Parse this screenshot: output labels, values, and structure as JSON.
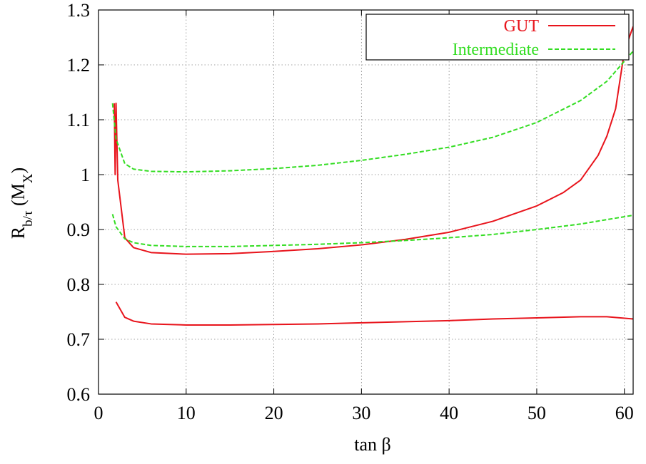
{
  "chart_data": {
    "type": "line",
    "xlabel_main": "tan ",
    "xlabel_symbol": "β",
    "ylabel_main": "R",
    "ylabel_sub": "b/τ",
    "ylabel_rest": " (M",
    "ylabel_sub2": "X",
    "ylabel_close": ")",
    "xlim": [
      0,
      61
    ],
    "ylim": [
      0.6,
      1.3
    ],
    "xticks": [
      0,
      10,
      20,
      30,
      40,
      50,
      60
    ],
    "yticks": [
      0.6,
      0.7,
      0.8,
      0.9,
      1,
      1.1,
      1.2,
      1.3
    ],
    "ytick_labels": [
      "0.6",
      "0.7",
      "0.8",
      "0.9",
      "1",
      "1.1",
      "1.2",
      "1.3"
    ],
    "grid": true,
    "legend_position": "top-right",
    "legend": [
      {
        "name": "GUT",
        "color": "#e8141c",
        "dash": "solid"
      },
      {
        "name": "Intermediate",
        "color": "#33dd22",
        "dash": "dashed"
      }
    ],
    "series": [
      {
        "legend": "GUT",
        "color": "#e8141c",
        "dash": "solid",
        "x": [
          1.8,
          1.9,
          2.0,
          2.2,
          3.0,
          4.0,
          6.0,
          10.0,
          15.0,
          20.0,
          25.0,
          30.0,
          35.0,
          40.0,
          45.0,
          50.0,
          53.0,
          55.0,
          57.0,
          58.0,
          59.0,
          60.0,
          61.0
        ],
        "y": [
          1.13,
          1.0,
          1.13,
          0.99,
          0.885,
          0.867,
          0.858,
          0.855,
          0.856,
          0.86,
          0.865,
          0.872,
          0.882,
          0.895,
          0.915,
          0.943,
          0.967,
          0.99,
          1.035,
          1.07,
          1.12,
          1.225,
          1.27
        ]
      },
      {
        "legend": "GUT",
        "color": "#e8141c",
        "dash": "solid",
        "x": [
          2.0,
          3.0,
          4.0,
          6.0,
          10.0,
          15.0,
          20.0,
          25.0,
          30.0,
          35.0,
          40.0,
          45.0,
          50.0,
          55.0,
          58.0,
          61.0
        ],
        "y": [
          0.768,
          0.74,
          0.733,
          0.728,
          0.726,
          0.726,
          0.727,
          0.728,
          0.73,
          0.732,
          0.734,
          0.737,
          0.739,
          0.741,
          0.741,
          0.737
        ]
      },
      {
        "legend": "Intermediate",
        "color": "#33dd22",
        "dash": "dashed",
        "x": [
          1.6,
          2.0,
          3.0,
          4.0,
          6.0,
          10.0,
          15.0,
          20.0,
          25.0,
          30.0,
          35.0,
          40.0,
          45.0,
          50.0,
          55.0,
          58.0,
          61.0
        ],
        "y": [
          1.13,
          1.065,
          1.02,
          1.01,
          1.006,
          1.005,
          1.007,
          1.011,
          1.017,
          1.026,
          1.037,
          1.05,
          1.068,
          1.095,
          1.135,
          1.17,
          1.225
        ]
      },
      {
        "legend": "Intermediate",
        "color": "#33dd22",
        "dash": "dashed",
        "x": [
          1.6,
          2.0,
          3.0,
          4.0,
          6.0,
          10.0,
          15.0,
          20.0,
          25.0,
          30.0,
          35.0,
          40.0,
          45.0,
          50.0,
          55.0,
          61.0
        ],
        "y": [
          0.928,
          0.905,
          0.883,
          0.876,
          0.871,
          0.869,
          0.869,
          0.871,
          0.873,
          0.876,
          0.88,
          0.885,
          0.891,
          0.9,
          0.91,
          0.926
        ]
      }
    ]
  }
}
